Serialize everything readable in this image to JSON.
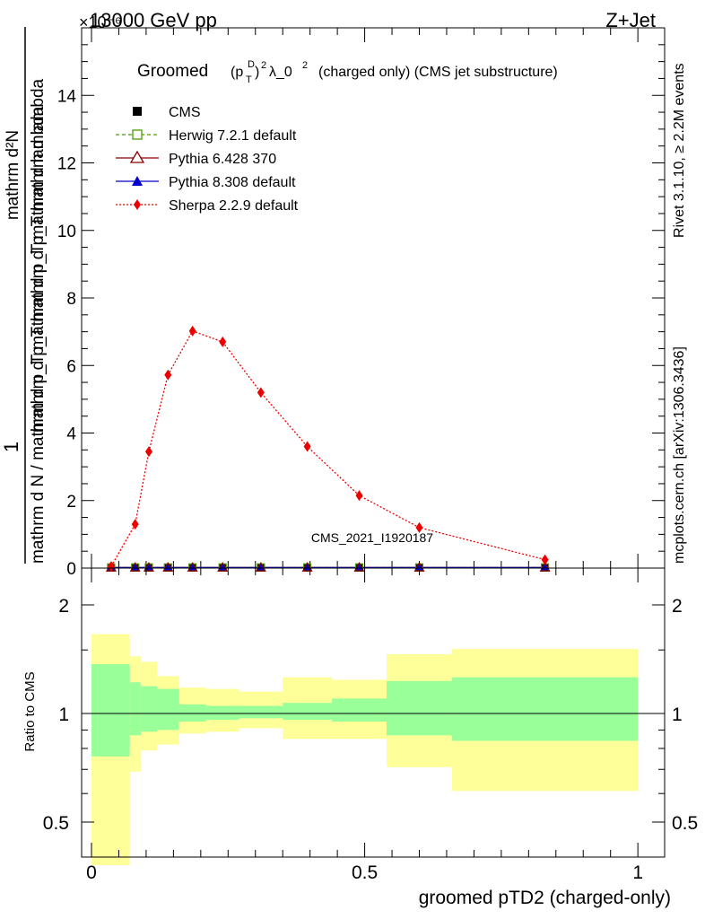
{
  "header": {
    "energy": "13000 GeV pp",
    "process": "Z+Jet",
    "exponent": "×10⁻⁶"
  },
  "side_labels": {
    "rivet": "Rivet 3.1.10, ≥ 2.2M events",
    "mcplots": "mcplots.cern.ch [arXiv:1306.3436]"
  },
  "main": {
    "title_prefix": "Groomed",
    "title_suffix": "λ_0",
    "title_tail": "(charged only) (CMS jet substructure)",
    "analysis_tag": "CMS_2021_I1920187",
    "ylabel_numerator": "mathrm d²N",
    "ylabel_denominator": "mathrm d p_T mathrm d p_T mathrm d lambda",
    "ylabel_left_num": "1",
    "ylabel_left_den": "mathrm d N / mathrm d p_T mathrm d p_T mathrm d lambda"
  },
  "legend": [
    {
      "label": "CMS",
      "color": "#000000",
      "marker": "square-filled",
      "line": "none"
    },
    {
      "label": "Herwig 7.2.1 default",
      "color": "#4e9a06",
      "marker": "square-open",
      "line": "dashed"
    },
    {
      "label": "Pythia 6.428 370",
      "color": "#8b0000",
      "marker": "triangle-open",
      "line": "solid"
    },
    {
      "label": "Pythia 8.308 default",
      "color": "#0000cc",
      "marker": "triangle-filled",
      "line": "solid"
    },
    {
      "label": "Sherpa 2.2.9 default",
      "color": "#ee0000",
      "marker": "diamond-filled",
      "line": "dotted"
    }
  ],
  "ratio": {
    "ylabel": "Ratio to CMS",
    "xlabel": "groomed pTD2 (charged-only)"
  },
  "chart_data": [
    {
      "type": "line",
      "panel": "main",
      "xlim": [
        0,
        1
      ],
      "ylim": [
        0,
        16
      ],
      "y_multiplier": "1e-6",
      "yticks": [
        0,
        2,
        4,
        6,
        8,
        10,
        12,
        14
      ],
      "ytick_labels": [
        "0",
        "2",
        "4",
        "6",
        "8",
        "10",
        "12",
        "14"
      ],
      "x": [
        0.036,
        0.08,
        0.105,
        0.14,
        0.185,
        0.24,
        0.31,
        0.395,
        0.49,
        0.6,
        0.83
      ],
      "series": [
        {
          "name": "CMS",
          "values": [
            0.02,
            0.02,
            0.02,
            0.02,
            0.02,
            0.02,
            0.02,
            0.02,
            0.02,
            0.02,
            0.02
          ]
        },
        {
          "name": "Herwig 7.2.1 default",
          "values": [
            0.02,
            0.02,
            0.02,
            0.02,
            0.02,
            0.02,
            0.02,
            0.02,
            0.02,
            0.02,
            0.02
          ]
        },
        {
          "name": "Pythia 6.428 370",
          "values": [
            0.02,
            0.02,
            0.02,
            0.02,
            0.02,
            0.02,
            0.02,
            0.02,
            0.02,
            0.02,
            0.02
          ]
        },
        {
          "name": "Pythia 8.308 default",
          "values": [
            0.02,
            0.02,
            0.02,
            0.02,
            0.02,
            0.02,
            0.02,
            0.02,
            0.02,
            0.02,
            0.02
          ]
        },
        {
          "name": "Sherpa 2.2.9 default",
          "values": [
            0.05,
            1.3,
            3.45,
            5.72,
            7.02,
            6.7,
            5.2,
            3.6,
            2.15,
            1.2,
            0.25
          ]
        }
      ]
    },
    {
      "type": "area",
      "panel": "ratio",
      "xlim": [
        0,
        1
      ],
      "ylim": [
        0.35,
        2.35
      ],
      "yticks": [
        0.5,
        1,
        2
      ],
      "ytick_labels": [
        "0.5",
        "1",
        "2"
      ],
      "xticks": [
        0,
        0.5,
        1
      ],
      "xtick_labels": [
        "0",
        "0.5",
        "1"
      ],
      "bin_edges": [
        0,
        0.07,
        0.09,
        0.12,
        0.16,
        0.21,
        0.27,
        0.35,
        0.44,
        0.54,
        0.66,
        1.0
      ],
      "stat_band": {
        "name": "stat",
        "color": "#99ff99",
        "lo": [
          0.76,
          0.87,
          0.89,
          0.9,
          0.95,
          0.96,
          0.97,
          0.96,
          0.95,
          0.87,
          0.84
        ],
        "hi": [
          1.37,
          1.22,
          1.19,
          1.17,
          1.06,
          1.05,
          1.05,
          1.07,
          1.1,
          1.23,
          1.26
        ]
      },
      "total_band": {
        "name": "total",
        "color": "#ffff99",
        "lo": [
          0.38,
          0.69,
          0.79,
          0.82,
          0.88,
          0.89,
          0.91,
          0.85,
          0.85,
          0.71,
          0.61
        ],
        "hi": [
          1.66,
          1.44,
          1.39,
          1.27,
          1.18,
          1.17,
          1.15,
          1.26,
          1.24,
          1.46,
          1.51
        ]
      },
      "reference_line": 1
    }
  ]
}
